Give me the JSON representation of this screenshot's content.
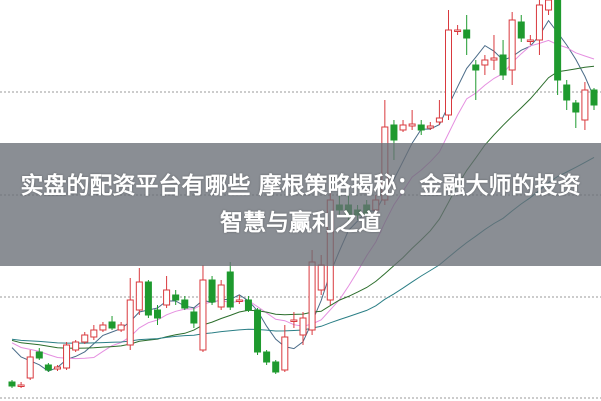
{
  "title": "实盘的配资平台有哪些 摩根策略揭秘：金融大师的投资智慧与赢利之道",
  "colors": {
    "up": "#d9393e",
    "down": "#1e9a2e",
    "overlay": "#696e76",
    "grid": "#9a9a9a",
    "ma": [
      "#4a6b88",
      "#e58fe0",
      "#2c6e2c",
      "#2b7f86"
    ]
  },
  "chart_data": {
    "type": "candlestick",
    "title": "",
    "grid": true,
    "ylim": [
      0,
      400
    ],
    "ohlc": [
      [
        18,
        14,
        20,
        12
      ],
      [
        15,
        15,
        18,
        12
      ],
      [
        22,
        43,
        50,
        20
      ],
      [
        48,
        42,
        52,
        40
      ],
      [
        35,
        30,
        37,
        28
      ],
      [
        31,
        33,
        35,
        29
      ],
      [
        32,
        55,
        58,
        30
      ],
      [
        50,
        58,
        60,
        48
      ],
      [
        58,
        65,
        68,
        56
      ],
      [
        63,
        70,
        75,
        60
      ],
      [
        70,
        75,
        78,
        68
      ],
      [
        78,
        72,
        84,
        70
      ],
      [
        70,
        75,
        78,
        68
      ],
      [
        55,
        100,
        122,
        50
      ],
      [
        90,
        118,
        132,
        85
      ],
      [
        118,
        85,
        120,
        82
      ],
      [
        90,
        82,
        95,
        75
      ],
      [
        95,
        110,
        124,
        92
      ],
      [
        105,
        100,
        110,
        95
      ],
      [
        100,
        92,
        104,
        90
      ],
      [
        88,
        77,
        92,
        72
      ],
      [
        50,
        120,
        135,
        48
      ],
      [
        120,
        98,
        124,
        95
      ],
      [
        93,
        115,
        120,
        90
      ],
      [
        128,
        93,
        138,
        90
      ],
      [
        100,
        100,
        105,
        96
      ],
      [
        100,
        90,
        104,
        88
      ],
      [
        90,
        48,
        92,
        45
      ],
      [
        48,
        38,
        50,
        35
      ],
      [
        38,
        28,
        40,
        26
      ],
      [
        30,
        63,
        75,
        28
      ],
      [
        80,
        80,
        88,
        72
      ],
      [
        65,
        82,
        88,
        55
      ],
      [
        70,
        138,
        150,
        65
      ],
      [
        110,
        135,
        145,
        105
      ],
      [
        100,
        200,
        220,
        95
      ],
      [
        195,
        190,
        205,
        185
      ],
      [
        195,
        185,
        205,
        180
      ],
      [
        190,
        185,
        195,
        180
      ],
      [
        195,
        185,
        200,
        178
      ],
      [
        190,
        200,
        205,
        185
      ],
      [
        200,
        273,
        300,
        195
      ],
      [
        275,
        260,
        280,
        240
      ],
      [
        270,
        275,
        280,
        268
      ],
      [
        274,
        276,
        290,
        270
      ],
      [
        275,
        270,
        280,
        265
      ],
      [
        272,
        274,
        278,
        270
      ],
      [
        278,
        282,
        300,
        275
      ],
      [
        285,
        370,
        390,
        280
      ],
      [
        370,
        370,
        375,
        365
      ],
      [
        370,
        362,
        385,
        345
      ],
      [
        335,
        330,
        340,
        300
      ],
      [
        335,
        340,
        345,
        325
      ],
      [
        340,
        342,
        365,
        330
      ],
      [
        345,
        325,
        360,
        320
      ],
      [
        330,
        380,
        388,
        315
      ],
      [
        378,
        362,
        385,
        358
      ],
      [
        360,
        360,
        365,
        355
      ],
      [
        360,
        395,
        400,
        345
      ],
      [
        390,
        400,
        400,
        385
      ],
      [
        400,
        320,
        400,
        305
      ],
      [
        315,
        300,
        320,
        290
      ],
      [
        297,
        288,
        300,
        272
      ],
      [
        280,
        310,
        318,
        270
      ],
      [
        310,
        295,
        312,
        290
      ]
    ]
  }
}
